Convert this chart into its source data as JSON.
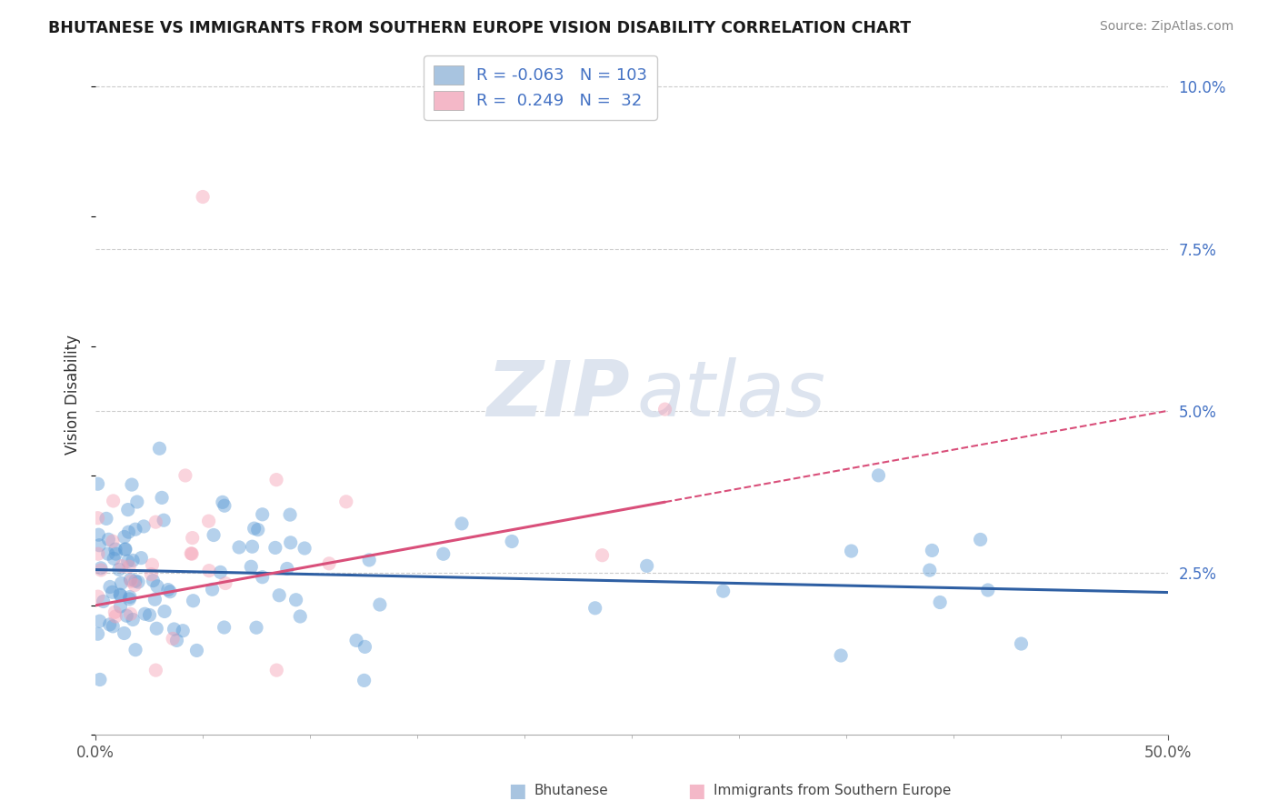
{
  "title": "BHUTANESE VS IMMIGRANTS FROM SOUTHERN EUROPE VISION DISABILITY CORRELATION CHART",
  "source": "Source: ZipAtlas.com",
  "ylabel": "Vision Disability",
  "xlim": [
    0.0,
    0.5
  ],
  "ylim": [
    0.0,
    0.105
  ],
  "blue_color": "#5b9bd5",
  "pink_color": "#f4a0b5",
  "blue_line_color": "#2e5fa3",
  "pink_line_color": "#d94f7a",
  "legend_blue_color": "#a8c4e0",
  "legend_pink_color": "#f4b8c8",
  "R_blue": -0.063,
  "N_blue": 103,
  "R_pink": 0.249,
  "N_pink": 32,
  "scatter_size": 120,
  "scatter_alpha": 0.45,
  "background_color": "#ffffff",
  "grid_color": "#cccccc",
  "watermark_zip_color": "#dde4ef",
  "watermark_atlas_color": "#dde4ef"
}
